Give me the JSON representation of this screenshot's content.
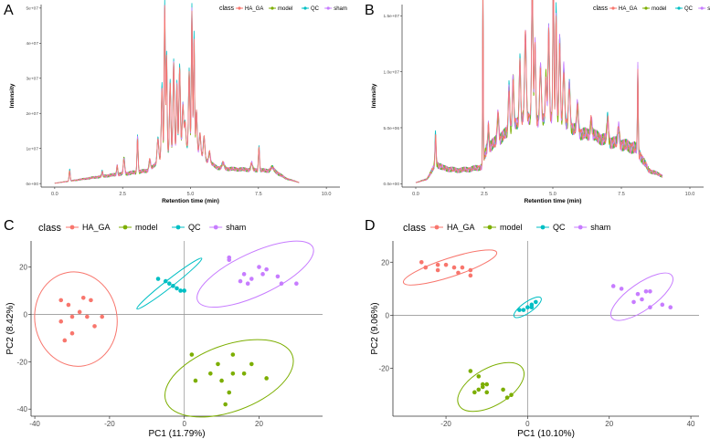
{
  "figure": {
    "panel_letters": [
      "A",
      "B",
      "C",
      "D"
    ]
  },
  "colors": {
    "HA_GA": "#F8766D",
    "model": "#7CAE00",
    "QC": "#00BFC4",
    "sham": "#C77CFF"
  },
  "chart_data": [
    {
      "panel": "A",
      "type": "line",
      "title": "",
      "xlabel": "Retention time (min)",
      "ylabel": "Intensity",
      "xlim": [
        -0.5,
        10.5
      ],
      "ylim": [
        -1000000,
        51000000
      ],
      "x_ticks": [
        0,
        2.5,
        5,
        7.5,
        10
      ],
      "x_tick_labels": [
        "0.0",
        "2.5",
        "5.0",
        "7.5",
        "10.0"
      ],
      "y_ticks": [
        0,
        10000000,
        20000000,
        30000000,
        40000000,
        50000000
      ],
      "y_tick_labels": [
        "0e+00",
        "1e+07",
        "2e+07",
        "3e+07",
        "4e+07",
        "5e+07"
      ],
      "legend": {
        "title": "class",
        "position": "top-right",
        "entries": [
          "HA_GA",
          "model",
          "QC",
          "sham"
        ]
      },
      "series_order": [
        "QC",
        "model",
        "sham",
        "HA_GA"
      ],
      "baseline_points": [
        [
          0,
          0.1
        ],
        [
          0.8,
          1.0
        ],
        [
          1.5,
          1.8
        ],
        [
          2.2,
          2.5
        ],
        [
          3.0,
          3.2
        ],
        [
          3.5,
          3.8
        ],
        [
          3.9,
          7
        ],
        [
          4.3,
          9
        ],
        [
          4.6,
          11
        ],
        [
          4.9,
          10
        ],
        [
          5.2,
          9
        ],
        [
          5.6,
          6.5
        ],
        [
          6.0,
          4.5
        ],
        [
          6.4,
          4.2
        ],
        [
          7.0,
          4.0
        ],
        [
          7.5,
          3.8
        ],
        [
          8.1,
          3.6
        ],
        [
          8.5,
          1.5
        ],
        [
          9.0,
          0.3
        ]
      ],
      "peaks": [
        [
          0.55,
          3.0,
          0.02
        ],
        [
          1.75,
          1.2,
          0.02
        ],
        [
          2.3,
          2.5,
          0.02
        ],
        [
          2.55,
          4.5,
          0.025
        ],
        [
          3.05,
          10.0,
          0.02
        ],
        [
          3.5,
          3.0,
          0.03
        ],
        [
          3.8,
          6.5,
          0.03
        ],
        [
          3.95,
          20.0,
          0.025
        ],
        [
          4.05,
          43.0,
          0.02
        ],
        [
          4.12,
          28.0,
          0.02
        ],
        [
          4.25,
          20.0,
          0.025
        ],
        [
          4.38,
          25.0,
          0.025
        ],
        [
          4.5,
          18.0,
          0.02
        ],
        [
          4.6,
          22.0,
          0.025
        ],
        [
          4.72,
          12.0,
          0.025
        ],
        [
          4.8,
          7.0,
          0.03
        ],
        [
          4.95,
          22.0,
          0.025
        ],
        [
          5.05,
          40.0,
          0.02
        ],
        [
          5.13,
          32.0,
          0.02
        ],
        [
          5.22,
          12.0,
          0.025
        ],
        [
          5.35,
          6.0,
          0.03
        ],
        [
          5.5,
          6.0,
          0.03
        ],
        [
          5.7,
          3.0,
          0.03
        ],
        [
          6.2,
          1.5,
          0.04
        ],
        [
          7.25,
          2.0,
          0.03
        ],
        [
          7.52,
          6.5,
          0.02
        ],
        [
          8.0,
          1.0,
          0.05
        ]
      ],
      "series_scale": {
        "HA_GA": 1.0,
        "model": 0.97,
        "QC": 1.05,
        "sham": 1.0
      }
    },
    {
      "panel": "B",
      "type": "line",
      "title": "",
      "xlabel": "Retention time (min)",
      "ylabel": "Intensity",
      "xlim": [
        -0.5,
        10.5
      ],
      "ylim": [
        -300000,
        16000000
      ],
      "x_ticks": [
        0,
        2.5,
        5,
        7.5,
        10
      ],
      "x_tick_labels": [
        "0.0",
        "2.5",
        "5.0",
        "7.5",
        "10.0"
      ],
      "y_ticks": [
        0,
        5000000,
        10000000,
        15000000
      ],
      "y_tick_labels": [
        "0.0e+00",
        "5.0e+06",
        "1.0e+07",
        "1.5e+07"
      ],
      "legend": {
        "title": "class",
        "position": "top-right",
        "entries": [
          "HA_GA",
          "model",
          "QC",
          "sham"
        ]
      },
      "series_order": [
        "QC",
        "model",
        "sham",
        "HA_GA"
      ],
      "baseline_points": [
        [
          0,
          0.1
        ],
        [
          0.4,
          0.4
        ],
        [
          0.75,
          1.8
        ],
        [
          1.0,
          1.4
        ],
        [
          1.5,
          1.2
        ],
        [
          2.0,
          1.3
        ],
        [
          2.4,
          1.5
        ],
        [
          2.6,
          3.2
        ],
        [
          3.0,
          3.8
        ],
        [
          3.5,
          5.0
        ],
        [
          4.0,
          6.0
        ],
        [
          4.5,
          5.5
        ],
        [
          5.0,
          6.0
        ],
        [
          5.5,
          5.2
        ],
        [
          6.0,
          4.5
        ],
        [
          6.5,
          4.3
        ],
        [
          7.0,
          3.8
        ],
        [
          7.5,
          3.5
        ],
        [
          8.0,
          3.2
        ],
        [
          8.2,
          2.5
        ],
        [
          8.5,
          1.2
        ],
        [
          9.0,
          0.7
        ]
      ],
      "peaks": [
        [
          0.72,
          2.5,
          0.02
        ],
        [
          2.45,
          16.0,
          0.012
        ],
        [
          2.65,
          2.0,
          0.02
        ],
        [
          3.0,
          2.5,
          0.03
        ],
        [
          3.4,
          4.0,
          0.025
        ],
        [
          3.55,
          4.5,
          0.025
        ],
        [
          3.8,
          5.5,
          0.025
        ],
        [
          4.0,
          7.5,
          0.03
        ],
        [
          4.25,
          12.5,
          0.025
        ],
        [
          4.35,
          7.0,
          0.025
        ],
        [
          4.55,
          5.0,
          0.03
        ],
        [
          4.75,
          4.0,
          0.025
        ],
        [
          4.85,
          8.0,
          0.025
        ],
        [
          5.02,
          13.0,
          0.02
        ],
        [
          5.12,
          9.5,
          0.02
        ],
        [
          5.25,
          7.5,
          0.025
        ],
        [
          5.4,
          5.0,
          0.03
        ],
        [
          5.6,
          4.0,
          0.03
        ],
        [
          5.9,
          2.5,
          0.03
        ],
        [
          6.4,
          1.5,
          0.03
        ],
        [
          7.0,
          2.0,
          0.03
        ],
        [
          7.4,
          1.5,
          0.03
        ],
        [
          8.1,
          7.5,
          0.015
        ]
      ],
      "series_scale": {
        "HA_GA": 1.0,
        "model": 0.98,
        "QC": 1.04,
        "sham": 1.0
      }
    },
    {
      "panel": "C",
      "type": "scatter",
      "title": "",
      "xlabel": "PC1 (11.79%)",
      "ylabel": "PC2 (8.42%)",
      "xlim": [
        -41,
        37
      ],
      "ylim": [
        -43,
        31
      ],
      "x_ticks": [
        -40,
        -20,
        0,
        20
      ],
      "y_ticks": [
        -40,
        -20,
        0,
        20
      ],
      "x_tick_labels": [
        "-40",
        "-20",
        "0",
        "20"
      ],
      "y_tick_labels": [
        "-40",
        "-20",
        "0",
        "20"
      ],
      "legend": {
        "title": "class",
        "position": "top-left",
        "entries": [
          "HA_GA",
          "model",
          "QC",
          "sham"
        ]
      },
      "series": [
        {
          "name": "HA_GA",
          "points": [
            [
              -33,
              6
            ],
            [
              -31,
              4
            ],
            [
              -27,
              7
            ],
            [
              -25,
              6
            ],
            [
              -28,
              1
            ],
            [
              -30,
              -1
            ],
            [
              -26,
              -1
            ],
            [
              -22,
              -1
            ],
            [
              -33,
              -3
            ],
            [
              -24,
              -5
            ],
            [
              -30,
              -8
            ],
            [
              -32,
              -11
            ]
          ],
          "ellipse": {
            "cx": -29,
            "cy": -2,
            "rx": 11,
            "ry": 20,
            "angle": -10
          }
        },
        {
          "name": "model",
          "points": [
            [
              2,
              -17
            ],
            [
              13,
              -17
            ],
            [
              9,
              -21
            ],
            [
              18,
              -21
            ],
            [
              7,
              -25
            ],
            [
              13,
              -25
            ],
            [
              16,
              -25
            ],
            [
              22,
              -27
            ],
            [
              3,
              -28
            ],
            [
              10,
              -28
            ],
            [
              12,
              -33
            ],
            [
              11,
              -38
            ]
          ],
          "ellipse": {
            "cx": 12,
            "cy": -27,
            "rx": 18,
            "ry": 14,
            "angle": -20
          }
        },
        {
          "name": "QC",
          "points": [
            [
              -7,
              15
            ],
            [
              -5,
              14
            ],
            [
              -4,
              13
            ],
            [
              -3,
              12
            ],
            [
              -2,
              11
            ],
            [
              -1,
              10
            ],
            [
              0,
              10
            ]
          ],
          "ellipse": {
            "cx": -4,
            "cy": 13,
            "rx": 11,
            "ry": 1.6,
            "angle": -38
          }
        },
        {
          "name": "sham",
          "points": [
            [
              12,
              24
            ],
            [
              12,
              23
            ],
            [
              20,
              20
            ],
            [
              22,
              19
            ],
            [
              16,
              17
            ],
            [
              21,
              17
            ],
            [
              25,
              16
            ],
            [
              18,
              15
            ],
            [
              15,
              14
            ],
            [
              26,
              13
            ],
            [
              17,
              13
            ],
            [
              30,
              13
            ]
          ],
          "ellipse": {
            "cx": 19,
            "cy": 17,
            "rx": 17,
            "ry": 9,
            "angle": -25
          }
        }
      ]
    },
    {
      "panel": "D",
      "type": "scatter",
      "title": "",
      "xlabel": "PC1 (10.10%)",
      "ylabel": "PC2 (9.06%)",
      "xlim": [
        -33,
        42
      ],
      "ylim": [
        -38,
        28
      ],
      "x_ticks": [
        -20,
        0,
        20,
        40
      ],
      "y_ticks": [
        -20,
        0,
        20
      ],
      "x_tick_labels": [
        "-20",
        "0",
        "20",
        "40"
      ],
      "y_tick_labels": [
        "-20",
        "0",
        "20"
      ],
      "legend": {
        "title": "class",
        "position": "top-left",
        "entries": [
          "HA_GA",
          "model",
          "QC",
          "sham"
        ]
      },
      "series": [
        {
          "name": "HA_GA",
          "points": [
            [
              -26,
              20
            ],
            [
              -22,
              19
            ],
            [
              -20,
              19
            ],
            [
              -25,
              18
            ],
            [
              -18,
              18
            ],
            [
              -16,
              18
            ],
            [
              -22,
              17
            ],
            [
              -14,
              17
            ],
            [
              -17,
              16
            ],
            [
              -14,
              15
            ]
          ],
          "ellipse": {
            "cx": -19,
            "cy": 18,
            "rx": 12,
            "ry": 3.5,
            "angle": -18
          }
        },
        {
          "name": "model",
          "points": [
            [
              -14,
              -21
            ],
            [
              -12,
              -23
            ],
            [
              -11,
              -26
            ],
            [
              -10,
              -26
            ],
            [
              -11,
              -27
            ],
            [
              -12,
              -28
            ],
            [
              -10,
              -29
            ],
            [
              -13,
              -29
            ],
            [
              -6,
              -28
            ],
            [
              -4,
              -30
            ],
            [
              -5,
              -31
            ]
          ],
          "ellipse": {
            "cx": -9,
            "cy": -27,
            "rx": 9,
            "ry": 7,
            "angle": -30
          }
        },
        {
          "name": "QC",
          "points": [
            [
              -2,
              2
            ],
            [
              -1,
              2
            ],
            [
              0,
              3
            ],
            [
              1,
              4
            ],
            [
              2,
              5
            ],
            [
              1,
              3
            ]
          ],
          "ellipse": {
            "cx": 0,
            "cy": 3,
            "rx": 4,
            "ry": 2,
            "angle": -35
          }
        },
        {
          "name": "sham",
          "points": [
            [
              21,
              11
            ],
            [
              23,
              10
            ],
            [
              29,
              9
            ],
            [
              30,
              9
            ],
            [
              27,
              8
            ],
            [
              28,
              6
            ],
            [
              26,
              5
            ],
            [
              33,
              4
            ],
            [
              35,
              3
            ],
            [
              30,
              3
            ]
          ],
          "ellipse": {
            "cx": 28,
            "cy": 7,
            "rx": 9,
            "ry": 5,
            "angle": -35
          }
        }
      ]
    }
  ]
}
